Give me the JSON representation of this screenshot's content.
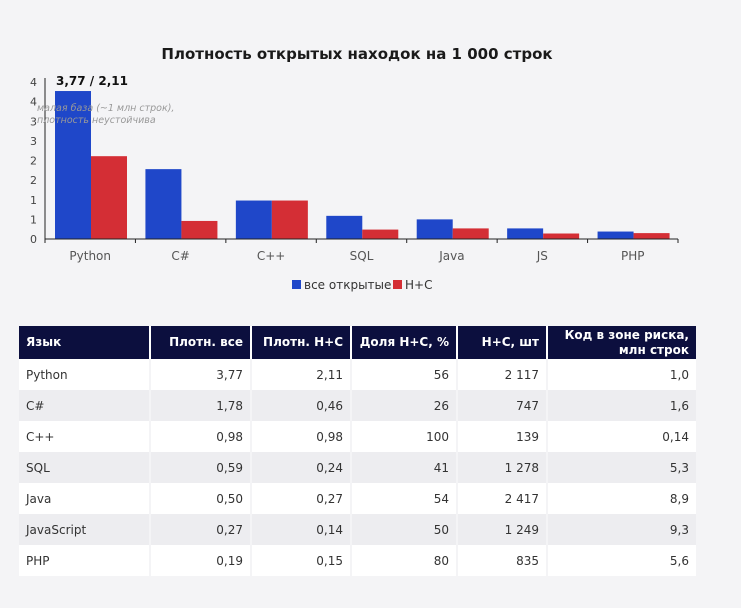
{
  "chart_data": {
    "type": "bar",
    "title": "Плотность открытых находок на 1 000 строк",
    "categories": [
      "Python",
      "C#",
      "C++",
      "SQL",
      "Java",
      "JS",
      "PHP"
    ],
    "series": [
      {
        "name": "все открытые",
        "color": "#1f47c9",
        "values": [
          3.77,
          1.78,
          0.98,
          0.59,
          0.5,
          0.27,
          0.19
        ]
      },
      {
        "name": "Н+С",
        "color": "#d42e35",
        "values": [
          2.11,
          0.46,
          0.98,
          0.24,
          0.27,
          0.14,
          0.15
        ]
      }
    ],
    "ylim": [
      0,
      4
    ],
    "yticks": [
      {
        "value": 0,
        "label": "0"
      },
      {
        "value": 0.5,
        "label": "1"
      },
      {
        "value": 1,
        "label": "1"
      },
      {
        "value": 1.5,
        "label": "2"
      },
      {
        "value": 2,
        "label": "2"
      },
      {
        "value": 2.5,
        "label": "3"
      },
      {
        "value": 3,
        "label": "3"
      },
      {
        "value": 3.5,
        "label": "4"
      },
      {
        "value": 4,
        "label": "4"
      }
    ],
    "grid": false,
    "legend": "bottom",
    "annotations": {
      "value_label": "3,77 / 2,11",
      "note_line1": "малая база (~1 млн строк),",
      "note_line2": "плотность неустойчива"
    }
  },
  "table": {
    "headers": [
      {
        "label": "Язык",
        "align": "left"
      },
      {
        "label": "Плотн. все",
        "align": "right"
      },
      {
        "label": "Плотн. Н+С",
        "align": "right"
      },
      {
        "label": "Доля Н+С, %",
        "align": "right"
      },
      {
        "label": "Н+С, шт",
        "align": "right"
      },
      {
        "label": "Код в зоне риска, млн строк",
        "align": "right"
      }
    ],
    "rows": [
      [
        "Python",
        "3,77",
        "2,11",
        "56",
        "2 117",
        "1,0"
      ],
      [
        "C#",
        "1,78",
        "0,46",
        "26",
        "747",
        "1,6"
      ],
      [
        "C++",
        "0,98",
        "0,98",
        "100",
        "139",
        "0,14"
      ],
      [
        "SQL",
        "0,59",
        "0,24",
        "41",
        "1 278",
        "5,3"
      ],
      [
        "Java",
        "0,50",
        "0,27",
        "54",
        "2 417",
        "8,9"
      ],
      [
        "JavaScript",
        "0,27",
        "0,14",
        "50",
        "1 249",
        "9,3"
      ],
      [
        "PHP",
        "0,19",
        "0,15",
        "80",
        "835",
        "5,6"
      ]
    ]
  }
}
